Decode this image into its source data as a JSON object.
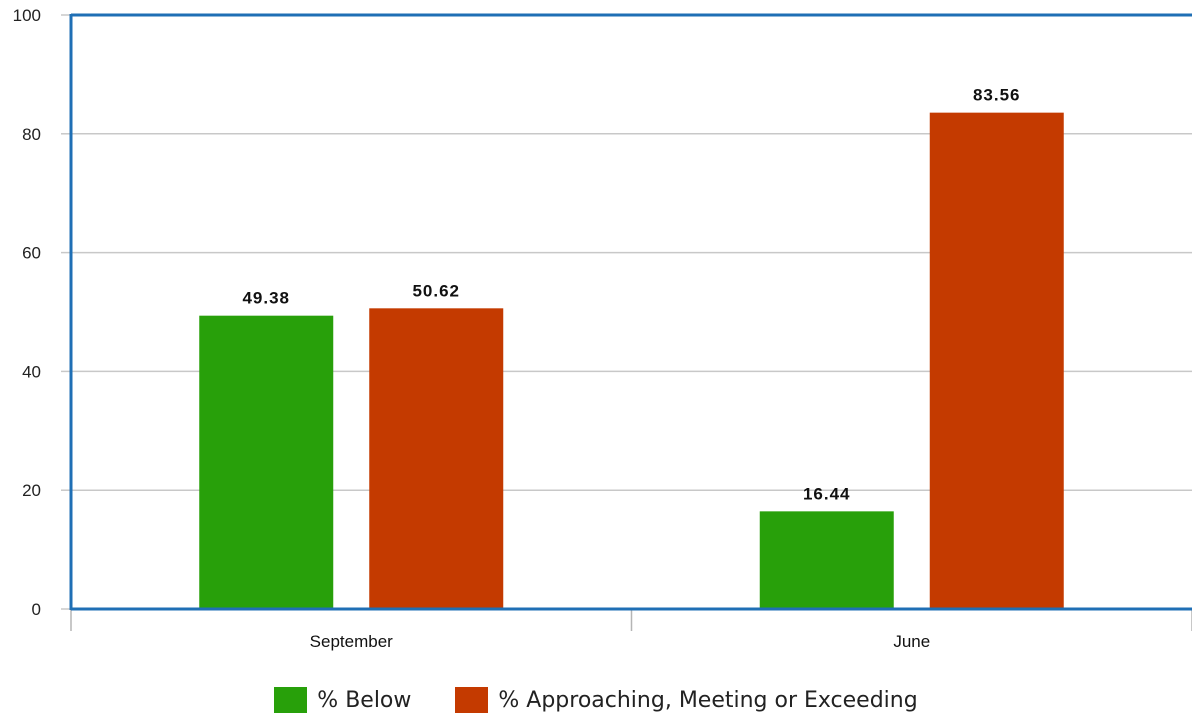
{
  "chart_data": {
    "type": "bar",
    "categories": [
      "September",
      "June"
    ],
    "series": [
      {
        "name": "% Below",
        "values": [
          49.38,
          16.44
        ],
        "color": "#28a00a"
      },
      {
        "name": "% Approaching, Meeting or Exceeding",
        "values": [
          50.62,
          83.56
        ],
        "color": "#c43a00"
      }
    ],
    "data_labels": [
      [
        "49.38",
        "16.44"
      ],
      [
        "50.62",
        "83.56"
      ]
    ],
    "ylim": [
      0,
      100
    ],
    "yticks": [
      0,
      20,
      40,
      60,
      80,
      100
    ],
    "title": "",
    "xlabel": "",
    "ylabel": "",
    "grid": true,
    "legend_position": "bottom",
    "axis_color": "#1f6fb5",
    "grid_color": "#c8c8c8"
  }
}
